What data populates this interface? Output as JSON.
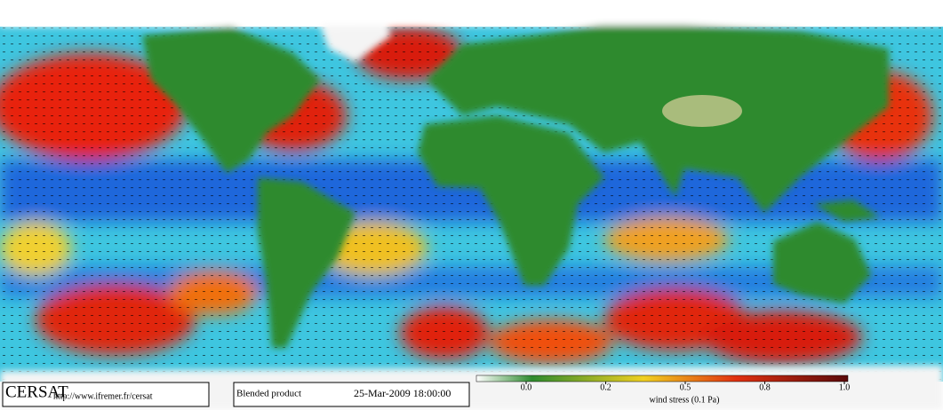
{
  "map": {
    "footer": {
      "logo": "CERSAT",
      "url": "http://www.ifremer.fr/cersat",
      "product": "Blended product",
      "datetime": "25-Mar-2009 18:00:00"
    },
    "colorbar": {
      "label": "wind stress (0.1 Pa)",
      "ticks": [
        {
          "value": 0,
          "label": "0.0"
        },
        0.2,
        0.5,
        0.8,
        {
          "value": 1,
          "label": "1.0"
        }
      ]
    }
  }
}
